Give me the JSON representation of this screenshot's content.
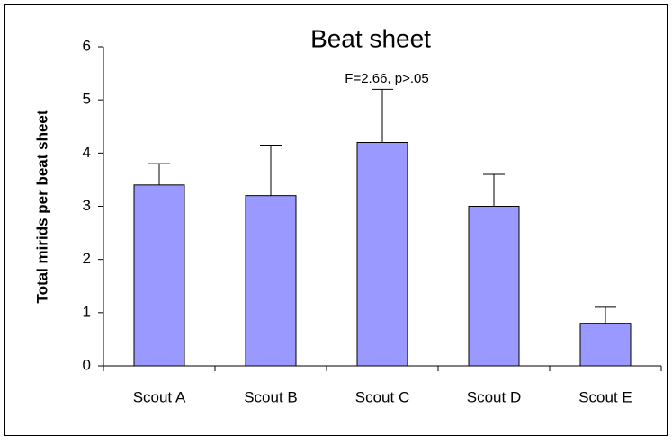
{
  "chart_data": {
    "type": "bar",
    "title": "Beat sheet",
    "annotation": "F=2.66, p>.05",
    "ylabel": "Total mirids per beat sheet",
    "categories": [
      "Scout A",
      "Scout B",
      "Scout C",
      "Scout D",
      "Scout E"
    ],
    "values": [
      3.4,
      3.2,
      4.2,
      3.0,
      0.8
    ],
    "errors": [
      0.4,
      0.95,
      1.0,
      0.6,
      0.3
    ],
    "color": "#9999ff",
    "ylim": [
      0,
      6
    ],
    "yticks": [
      0,
      1,
      2,
      3,
      4,
      5,
      6
    ],
    "grid": false
  }
}
